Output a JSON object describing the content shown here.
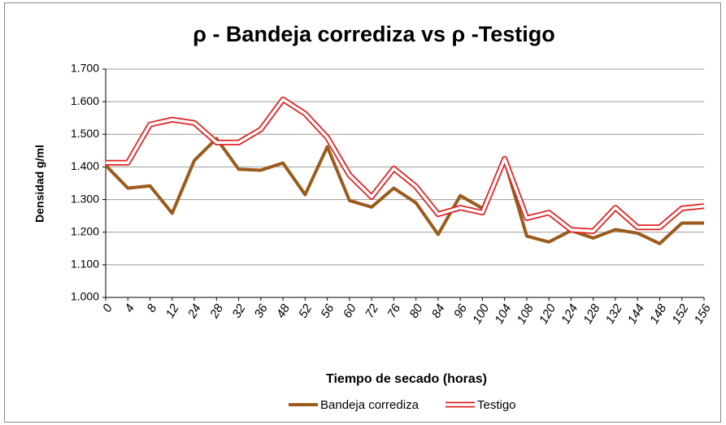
{
  "chart_data": {
    "type": "line",
    "title": "ρ - Bandeja corrediza vs  ρ -Testigo",
    "x_label": "Tiempo de secado (horas)",
    "y_label": "Densidad g/ml",
    "categories": [
      "0",
      "4",
      "8",
      "12",
      "24",
      "28",
      "32",
      "36",
      "48",
      "52",
      "56",
      "60",
      "72",
      "76",
      "80",
      "84",
      "96",
      "100",
      "104",
      "108",
      "120",
      "124",
      "128",
      "132",
      "144",
      "148",
      "152",
      "156"
    ],
    "series": [
      {
        "name": "Bandeja corrediza",
        "color": "#9a5b1c",
        "style": "solid",
        "values": [
          1.405,
          1.335,
          1.342,
          1.258,
          1.42,
          1.487,
          1.393,
          1.39,
          1.412,
          1.315,
          1.462,
          1.297,
          1.277,
          1.335,
          1.29,
          1.193,
          1.312,
          1.273,
          1.42,
          1.188,
          1.17,
          1.205,
          1.182,
          1.208,
          1.197,
          1.165,
          1.228,
          1.228
        ]
      },
      {
        "name": "Testigo",
        "color": "#e02020",
        "style": "double",
        "values": [
          1.413,
          1.413,
          1.53,
          1.545,
          1.535,
          1.475,
          1.475,
          1.515,
          1.607,
          1.563,
          1.49,
          1.375,
          1.308,
          1.395,
          1.34,
          1.255,
          1.275,
          1.26,
          1.425,
          1.243,
          1.26,
          1.207,
          1.203,
          1.275,
          1.215,
          1.215,
          1.273,
          1.28
        ]
      }
    ],
    "ylim": [
      1.0,
      1.7
    ],
    "yticks": [
      {
        "value": 1.0,
        "label": "1.000"
      },
      {
        "value": 1.1,
        "label": "1.100"
      },
      {
        "value": 1.2,
        "label": "1.200"
      },
      {
        "value": 1.3,
        "label": "1.300"
      },
      {
        "value": 1.4,
        "label": "1.400"
      },
      {
        "value": 1.5,
        "label": "1.500"
      },
      {
        "value": 1.6,
        "label": "1.600"
      },
      {
        "value": 1.7,
        "label": "1.700"
      }
    ],
    "grid": true,
    "legend": "bottom"
  }
}
